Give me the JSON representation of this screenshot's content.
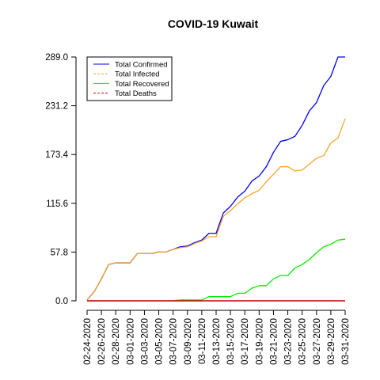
{
  "chart_data": {
    "type": "line",
    "title": "COVID-19 Kuwait",
    "xlabel": "",
    "ylabel": "",
    "ylim": [
      0,
      289.0
    ],
    "y_ticks": [
      "0.0",
      "57.8",
      "115.6",
      "173.4",
      "231.2",
      "289.0"
    ],
    "x": [
      "02-24-2020",
      "02-25-2020",
      "02-26-2020",
      "02-27-2020",
      "02-28-2020",
      "02-29-2020",
      "03-01-2020",
      "03-02-2020",
      "03-03-2020",
      "03-04-2020",
      "03-05-2020",
      "03-06-2020",
      "03-07-2020",
      "03-08-2020",
      "03-09-2020",
      "03-10-2020",
      "03-11-2020",
      "03-12-2020",
      "03-13-2020",
      "03-14-2020",
      "03-15-2020",
      "03-16-2020",
      "03-17-2020",
      "03-18-2020",
      "03-19-2020",
      "03-20-2020",
      "03-21-2020",
      "03-22-2020",
      "03-23-2020",
      "03-24-2020",
      "03-25-2020",
      "03-26-2020",
      "03-27-2020",
      "03-28-2020",
      "03-29-2020",
      "03-30-2020",
      "03-31-2020"
    ],
    "x_tick_labels": [
      "02-24-2020",
      "02-26-2020",
      "02-28-2020",
      "03-01-2020",
      "03-03-2020",
      "03-05-2020",
      "03-07-2020",
      "03-09-2020",
      "03-11-2020",
      "03-13-2020",
      "03-15-2020",
      "03-17-2020",
      "03-19-2020",
      "03-21-2020",
      "03-23-2020",
      "03-25-2020",
      "03-27-2020",
      "03-29-2020",
      "03-31-2020"
    ],
    "legend_position": "top-left",
    "series": [
      {
        "name": "Total Confirmed",
        "color": "#0000ff",
        "dash": "solid",
        "values": [
          1,
          11,
          26,
          43,
          45,
          45,
          45,
          56,
          56,
          56,
          58,
          58,
          61,
          64,
          65,
          69,
          72,
          80,
          80,
          104,
          112,
          123,
          130,
          142,
          148,
          159,
          176,
          189,
          191,
          195,
          208,
          225,
          235,
          255,
          266,
          289,
          289
        ]
      },
      {
        "name": "Total Infected",
        "color": "#f5a623",
        "dash": "dashed",
        "values": [
          1,
          11,
          26,
          43,
          45,
          45,
          45,
          56,
          56,
          56,
          58,
          58,
          61,
          63,
          64,
          68,
          71,
          76,
          76,
          100,
          107,
          115,
          122,
          127,
          131,
          141,
          150,
          159,
          159,
          154,
          155,
          162,
          169,
          172,
          187,
          193,
          216
        ]
      },
      {
        "name": "Total Recovered",
        "color": "#00ee00",
        "dash": "solid",
        "values": [
          0,
          0,
          0,
          0,
          0,
          0,
          0,
          0,
          0,
          0,
          0,
          0,
          0,
          1,
          1,
          1,
          1,
          5,
          5,
          5,
          5,
          9,
          9,
          15,
          18,
          18,
          26,
          30,
          30,
          39,
          43,
          49,
          57,
          64,
          67,
          72,
          73
        ]
      },
      {
        "name": "Total Deaths",
        "color": "#cc0000",
        "dash": "dashed",
        "values": [
          0,
          0,
          0,
          0,
          0,
          0,
          0,
          0,
          0,
          0,
          0,
          0,
          0,
          0,
          0,
          0,
          0,
          0,
          0,
          0,
          0,
          0,
          0,
          0,
          0,
          0,
          0,
          0,
          0,
          0,
          0,
          0,
          0,
          0,
          0,
          0,
          0
        ]
      }
    ]
  }
}
